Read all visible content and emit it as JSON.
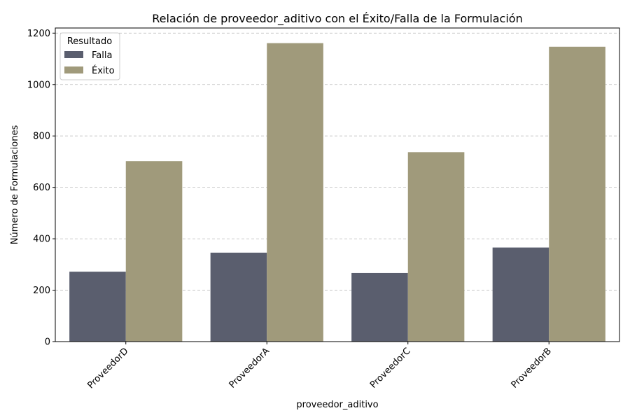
{
  "chart_data": {
    "type": "bar",
    "title": "Relación de proveedor_aditivo con el Éxito/Falla de la Formulación",
    "xlabel": "proveedor_aditivo",
    "ylabel": "Número de Formulaciones",
    "categories": [
      "ProveedorD",
      "ProveedorA",
      "ProveedorC",
      "ProveedorB"
    ],
    "series": [
      {
        "name": "Falla",
        "values": [
          272,
          346,
          267,
          366
        ],
        "color": "#5a5e6e"
      },
      {
        "name": "Éxito",
        "values": [
          702,
          1161,
          737,
          1147
        ],
        "color": "#a09a7b"
      }
    ],
    "ylim": [
      0,
      1200
    ],
    "yticks": [
      0,
      200,
      400,
      600,
      800,
      1000,
      1200
    ],
    "grid": "y-dashed",
    "legend": {
      "title": "Resultado",
      "position": "top-left"
    }
  }
}
